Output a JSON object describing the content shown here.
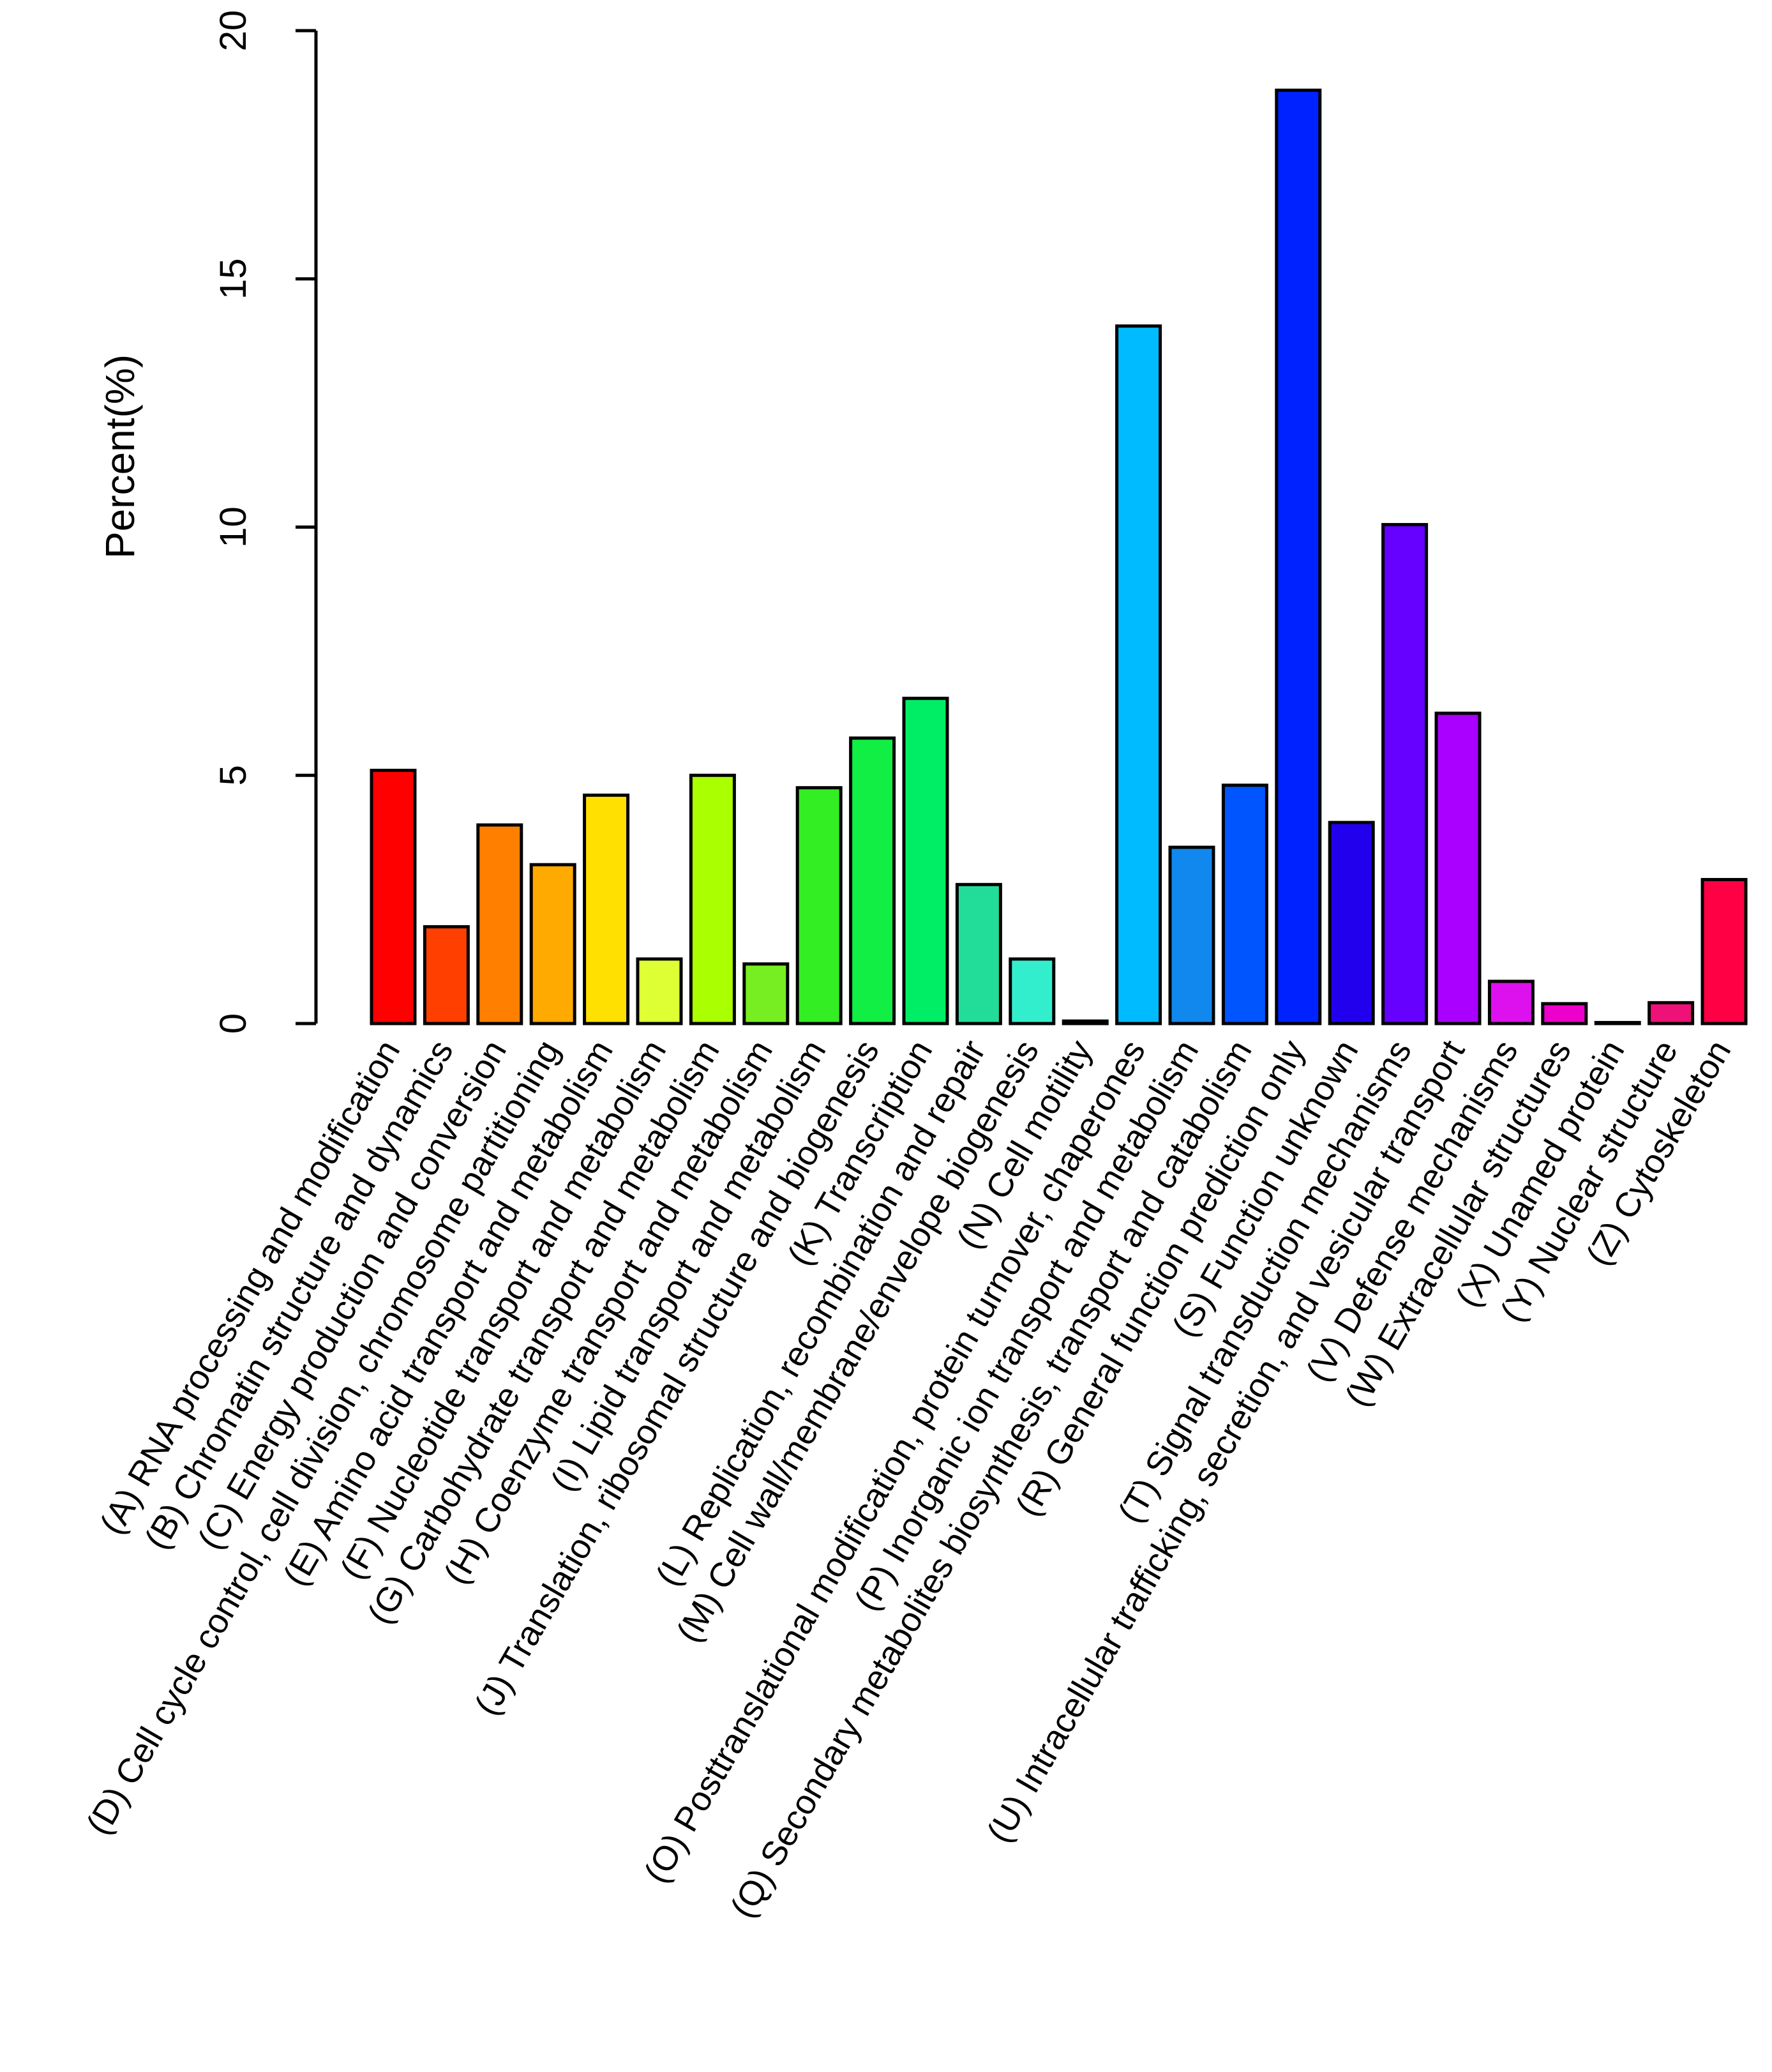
{
  "chart_data": {
    "type": "bar",
    "title": "",
    "xlabel": "",
    "ylabel": "Percent(%)",
    "ylim": [
      0,
      20
    ],
    "yticks": [
      0,
      5,
      10,
      15,
      20
    ],
    "grid": false,
    "categories": [
      "(A) RNA processing and modification",
      "(B) Chromatin structure and dynamics",
      "(C) Energy production and conversion",
      "(D) Cell cycle control, cell division, chromosome partitioning",
      "(E) Amino acid transport and metabolism",
      "(F) Nucleotide transport and metabolism",
      "(G) Carbohydrate transport and metabolism",
      "(H) Coenzyme transport and metabolism",
      "(I) Lipid transport and metabolism",
      "(J) Translation, ribosomal structure and biogenesis",
      "(K) Transcription",
      "(L) Replication, recombination and repair",
      "(M) Cell wall/membrane/envelope biogenesis",
      "(N) Cell motility",
      "(O) Posttranslational modification, protein turnover, chaperones",
      "(P) Inorganic ion transport and metabolism",
      "(Q) Secondary metabolites biosynthesis, transport and catabolism",
      "(R) General function prediction only",
      "(S) Function unknown",
      "(T) Signal transduction mechanisms",
      "(U) Intracellular trafficking, secretion, and vesicular transport",
      "(V) Defense mechanisms",
      "(W) Extracellular structures",
      "(X) Unamed protein",
      "(Y) Nuclear structure",
      "(Z) Cytoskeleton"
    ],
    "values": [
      5.1,
      1.95,
      4.0,
      3.2,
      4.6,
      1.3,
      5.0,
      1.2,
      4.75,
      5.75,
      6.55,
      2.8,
      1.3,
      0.05,
      14.05,
      3.55,
      4.8,
      18.8,
      4.05,
      10.05,
      6.25,
      0.85,
      0.4,
      0.02,
      0.42,
      2.9
    ],
    "colors": [
      "#ff0000",
      "#ff3f00",
      "#ff7f00",
      "#ffaa00",
      "#ffe000",
      "#ddff33",
      "#aaff00",
      "#77ee22",
      "#33ee22",
      "#11ee44",
      "#00ee66",
      "#22dd99",
      "#33eecc",
      "#00bbee",
      "#00bbff",
      "#1188ee",
      "#0055ff",
      "#0022ff",
      "#2200ee",
      "#6600ff",
      "#aa00ff",
      "#dd11ee",
      "#ee00cc",
      "#cc0077",
      "#ee1177",
      "#ff0044"
    ]
  }
}
